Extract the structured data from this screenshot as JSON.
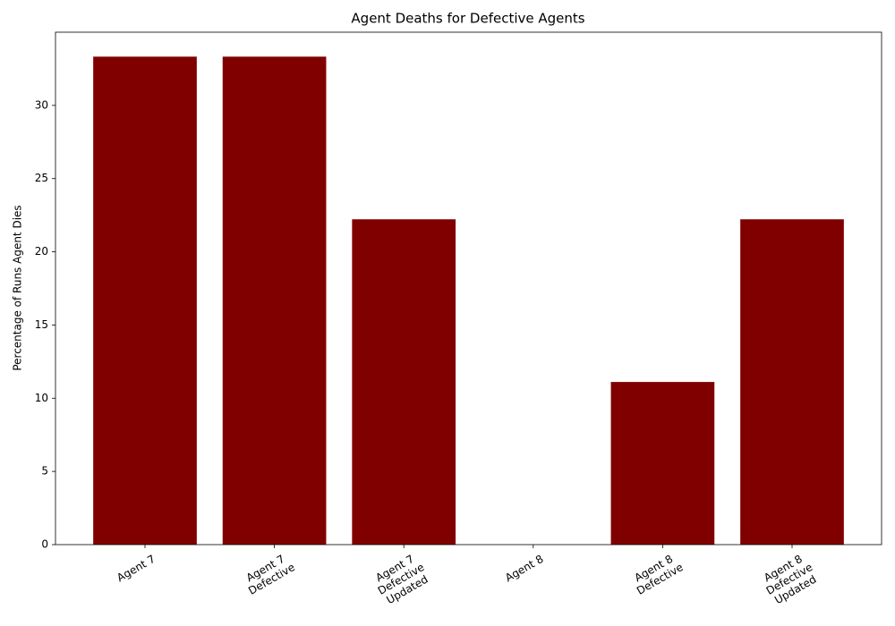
{
  "chart_data": {
    "type": "bar",
    "title": "Agent Deaths for Defective Agents",
    "y_label": "Percentage of Runs Agent Dies",
    "categories": [
      "Agent 7",
      "Agent 7\nDefective",
      "Agent 7\nDefective\nUpdated",
      "Agent 8",
      "Agent 8\nDefective",
      "Agent 8\nDefective\nUpdated"
    ],
    "values": [
      33.33,
      33.33,
      22.22,
      0,
      11.11,
      22.22
    ],
    "color": "#800000",
    "ylim": [
      0,
      35
    ],
    "yticks": [
      0,
      5,
      10,
      15,
      20,
      25,
      30
    ],
    "grid": false
  }
}
